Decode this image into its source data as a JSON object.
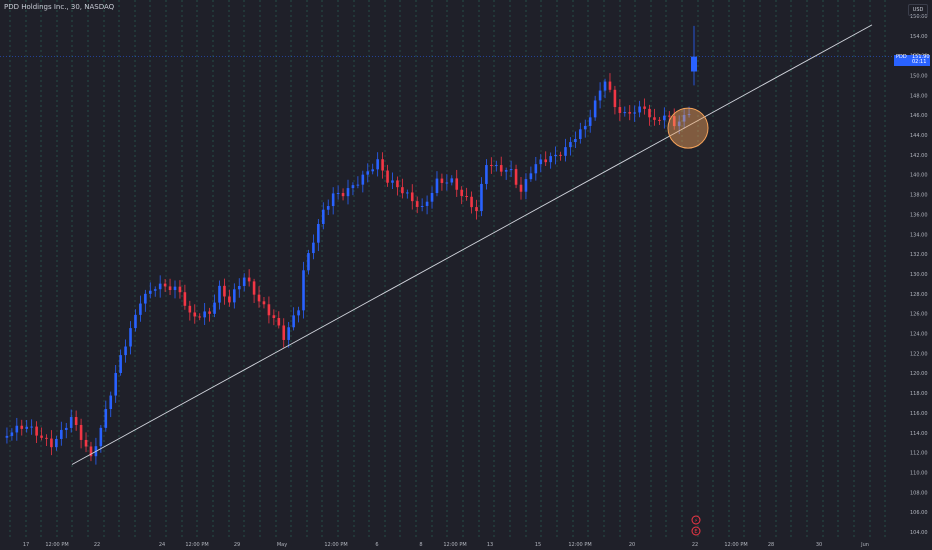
{
  "header": {
    "title": "PDD Holdings Inc., 30, NASDAQ"
  },
  "currency_button": {
    "label": "USD"
  },
  "price_tag": {
    "symbol": "PDD",
    "price": "151.90",
    "countdown": "02:11"
  },
  "event_markers": [
    {
      "label": "⚡"
    },
    {
      "label": "E"
    }
  ],
  "colors": {
    "up": "#2962ff",
    "down": "#f23645",
    "background": "#1f2029",
    "grid": "#2b6e5c",
    "trendline": "#d1d4dc",
    "highlight": "#f6a35a"
  },
  "chart_data": {
    "type": "candlestick",
    "title": "PDD Holdings Inc., 30, NASDAQ",
    "ylim": [
      104,
      157
    ],
    "y_ticks": [
      104,
      106,
      108,
      110,
      112,
      114,
      116,
      118,
      120,
      122,
      124,
      126,
      128,
      130,
      132,
      134,
      136,
      138,
      140,
      142,
      144,
      146,
      148,
      150,
      152,
      154,
      156
    ],
    "y_tick_labels": [
      "104.00",
      "106.00",
      "108.00",
      "110.00",
      "112.00",
      "114.00",
      "116.00",
      "118.00",
      "120.00",
      "122.00",
      "124.00",
      "126.00",
      "128.00",
      "130.00",
      "132.00",
      "134.00",
      "136.00",
      "138.00",
      "140.00",
      "142.00",
      "144.00",
      "146.00",
      "148.00",
      "150.00",
      "152.00",
      "154.00",
      "156.00"
    ],
    "x_ticks": [
      "17",
      "12:00 PM",
      "22",
      "24",
      "12:00 PM",
      "29",
      "May",
      "12:00 PM",
      "6",
      "8",
      "12:00 PM",
      "13",
      "15",
      "12:00 PM",
      "20",
      "22",
      "12:00 PM",
      "28",
      "30",
      "Jun"
    ],
    "last_price": 151.9,
    "grid": true,
    "waypoints": [
      {
        "x": 0,
        "y": 113.5
      },
      {
        "x": 5,
        "y": 114.3
      },
      {
        "x": 10,
        "y": 113.2
      },
      {
        "x": 14,
        "y": 115.7
      },
      {
        "x": 18,
        "y": 111.0
      },
      {
        "x": 20,
        "y": 114.0
      },
      {
        "x": 24,
        "y": 122.0
      },
      {
        "x": 28,
        "y": 127.6
      },
      {
        "x": 31,
        "y": 128.5
      },
      {
        "x": 36,
        "y": 128.0
      },
      {
        "x": 38,
        "y": 126.0
      },
      {
        "x": 42,
        "y": 126.5
      },
      {
        "x": 44,
        "y": 128.6
      },
      {
        "x": 46,
        "y": 127.0
      },
      {
        "x": 49,
        "y": 129.3
      },
      {
        "x": 52,
        "y": 127.3
      },
      {
        "x": 55,
        "y": 126.0
      },
      {
        "x": 57,
        "y": 124.0
      },
      {
        "x": 60,
        "y": 126.5
      },
      {
        "x": 61,
        "y": 130.0
      },
      {
        "x": 63,
        "y": 133.0
      },
      {
        "x": 65,
        "y": 136.0
      },
      {
        "x": 67,
        "y": 138.0
      },
      {
        "x": 69,
        "y": 138.5
      },
      {
        "x": 71,
        "y": 139.3
      },
      {
        "x": 73,
        "y": 140.0
      },
      {
        "x": 76,
        "y": 141.0
      },
      {
        "x": 78,
        "y": 139.0
      },
      {
        "x": 82,
        "y": 138.0
      },
      {
        "x": 85,
        "y": 137.0
      },
      {
        "x": 88,
        "y": 139.5
      },
      {
        "x": 91,
        "y": 139.0
      },
      {
        "x": 93,
        "y": 137.5
      },
      {
        "x": 96,
        "y": 136.3
      },
      {
        "x": 98,
        "y": 141.5
      },
      {
        "x": 101,
        "y": 141.0
      },
      {
        "x": 103,
        "y": 140.5
      },
      {
        "x": 105,
        "y": 138.0
      },
      {
        "x": 107,
        "y": 140.0
      },
      {
        "x": 109,
        "y": 141.0
      },
      {
        "x": 112,
        "y": 142.0
      },
      {
        "x": 114,
        "y": 143.0
      },
      {
        "x": 116,
        "y": 144.3
      },
      {
        "x": 118,
        "y": 145.0
      },
      {
        "x": 120,
        "y": 147.0
      },
      {
        "x": 122,
        "y": 149.2
      },
      {
        "x": 124,
        "y": 146.5
      },
      {
        "x": 126,
        "y": 146.0
      },
      {
        "x": 128,
        "y": 146.8
      },
      {
        "x": 130,
        "y": 147.2
      },
      {
        "x": 132,
        "y": 145.5
      },
      {
        "x": 134,
        "y": 146.0
      },
      {
        "x": 136,
        "y": 144.7
      },
      {
        "x": 138,
        "y": 145.3
      },
      {
        "x": 139,
        "y": 146.0
      },
      {
        "x": 140,
        "y": 151.9
      }
    ],
    "final_candle": {
      "open": 150.4,
      "high": 155.0,
      "low": 149.0,
      "close": 151.9
    },
    "trendline": {
      "from": {
        "date": "Apr 19",
        "price": 110.8
      },
      "to": {
        "date": "May 31",
        "price": 155.1
      }
    }
  }
}
